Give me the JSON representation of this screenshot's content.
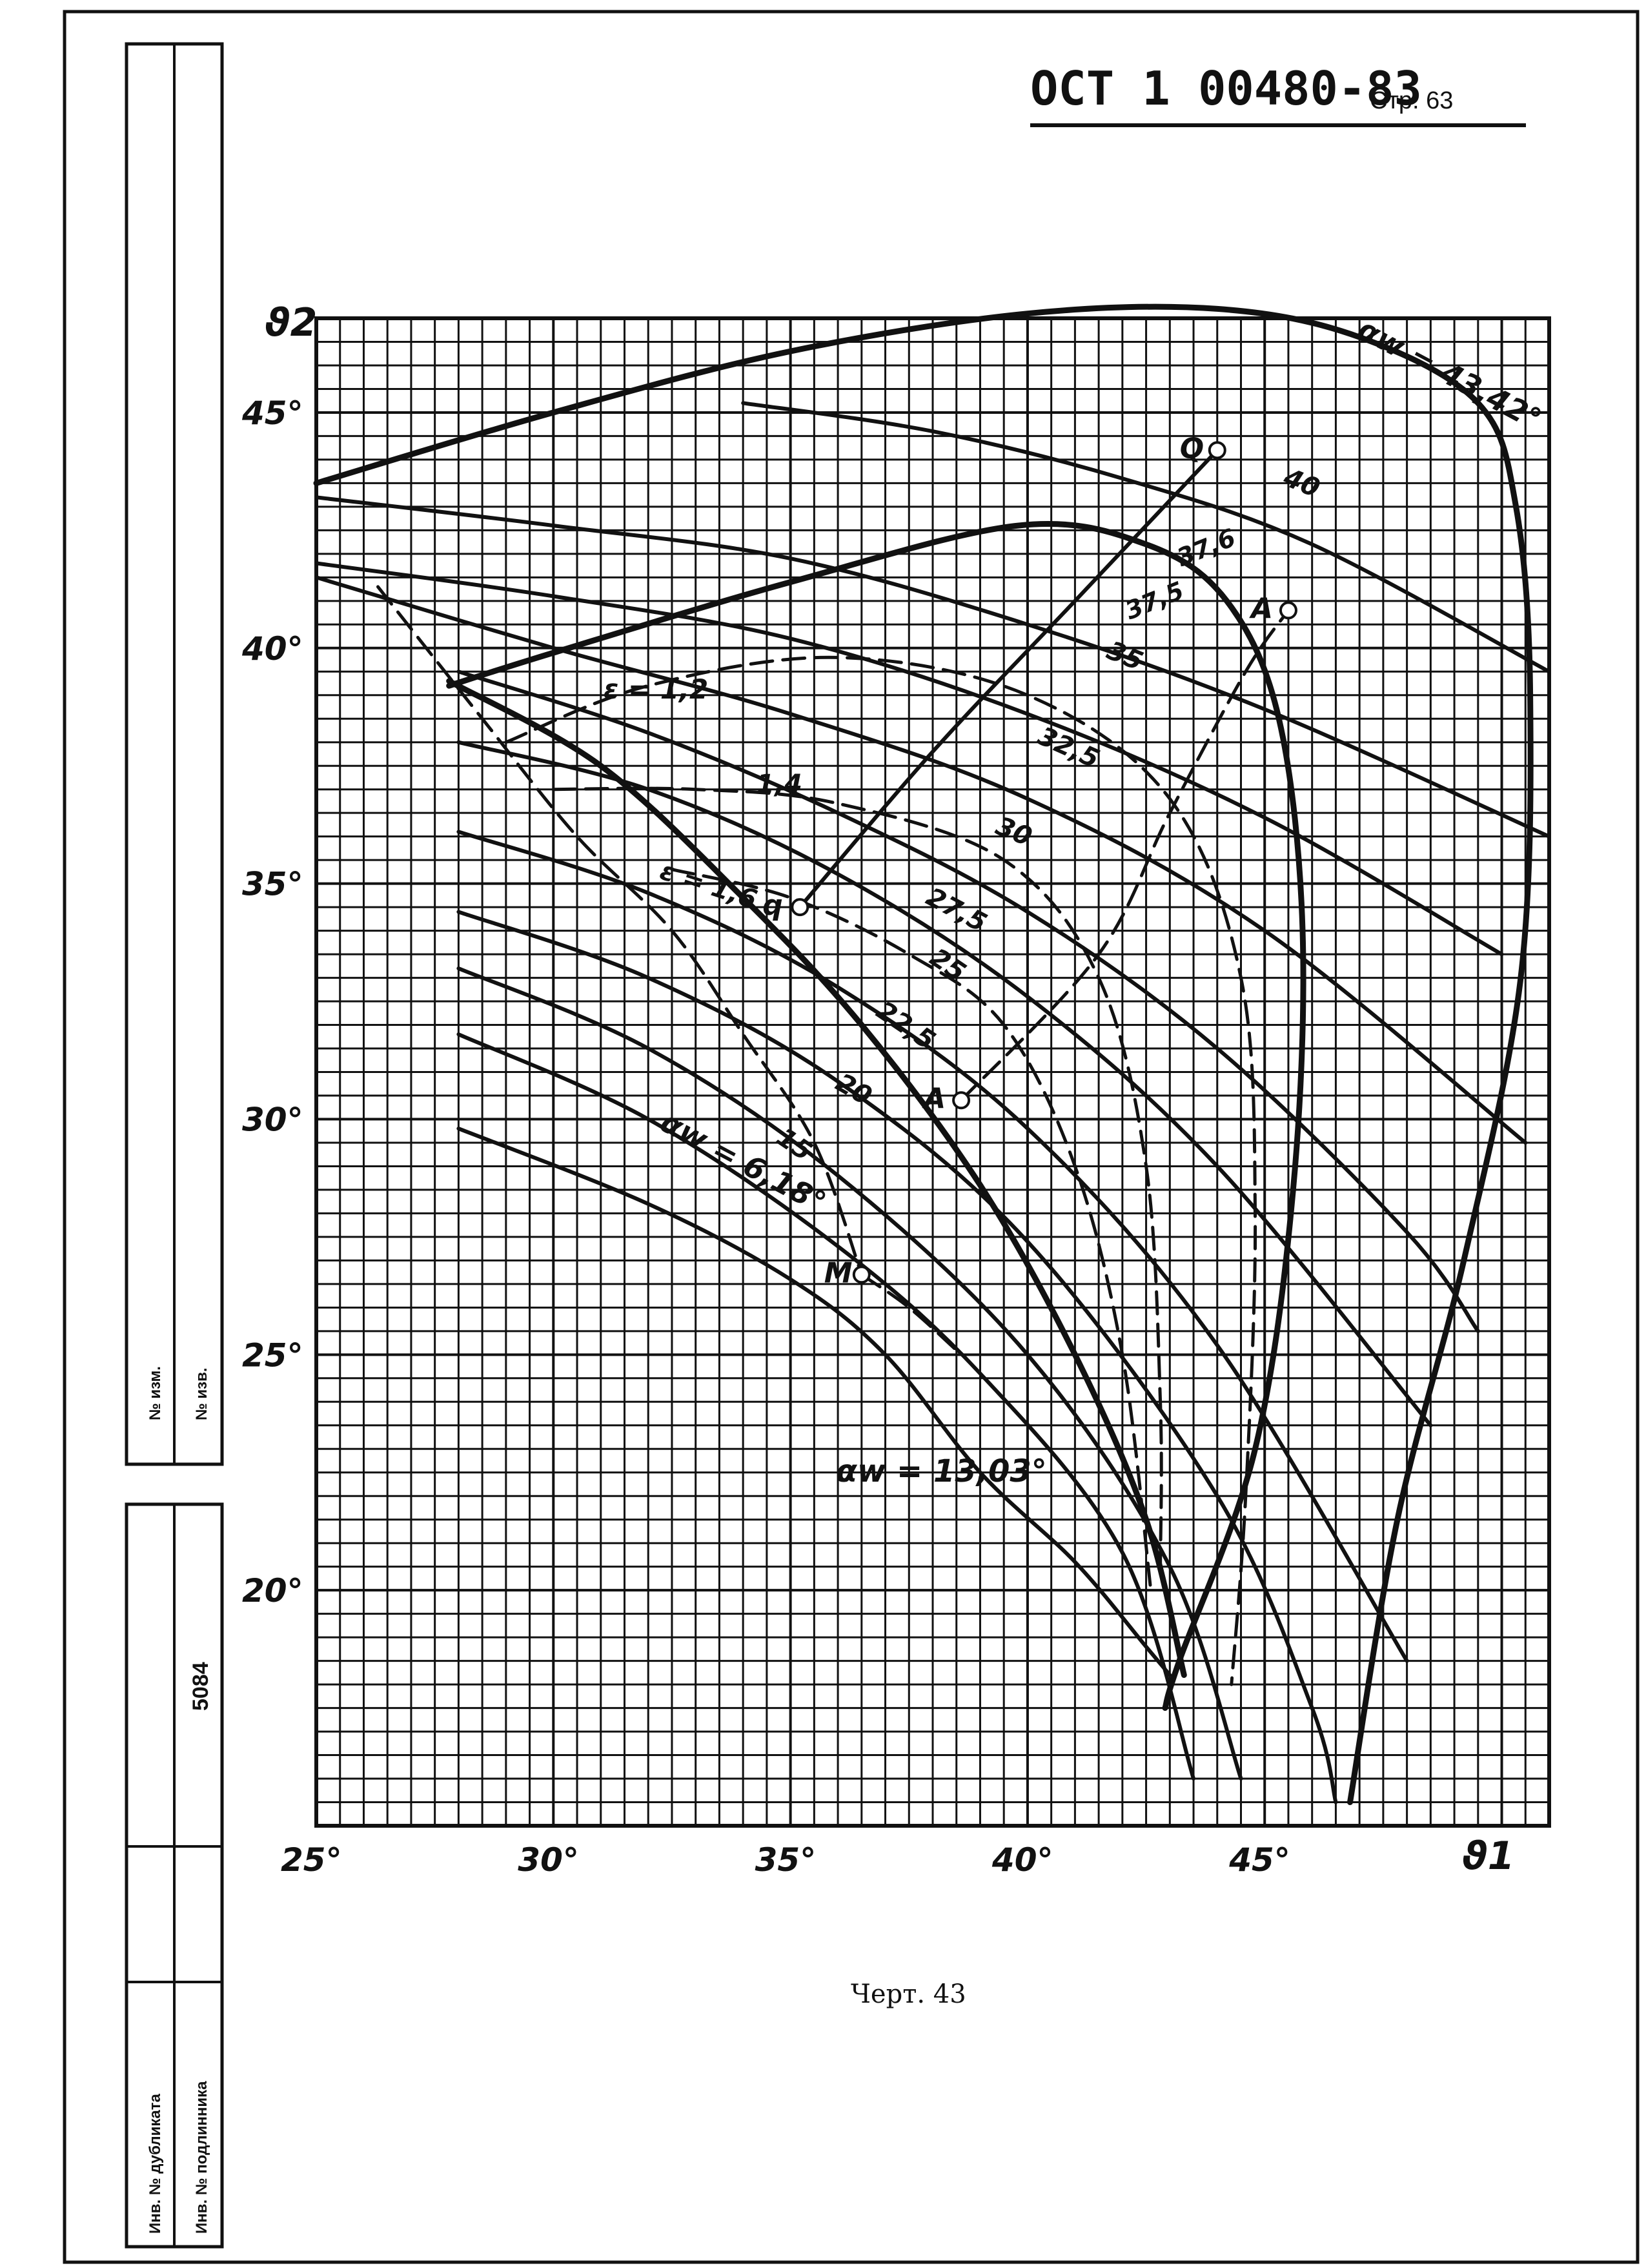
{
  "header": {
    "doc_code": "ОСТ 1 00480-83",
    "page_label": "Стр. 63"
  },
  "caption": "Черт. 43",
  "stamp": {
    "change_no_1": "№ изм.",
    "change_no_2": "№ изв.",
    "dup_inv": "Инв. № дубликата",
    "orig_inv": "Инв. № подлинника",
    "inv_number": "5084"
  },
  "chart_data": {
    "type": "line",
    "xlabel": "ϑ1",
    "ylabel": "ϑ2",
    "xlim": [
      25,
      51
    ],
    "ylim": [
      15,
      47
    ],
    "grid": true,
    "x_ticks": [
      "25°",
      "30°",
      "35°",
      "40°",
      "45°"
    ],
    "x_tick_values": [
      25,
      30,
      35,
      40,
      45
    ],
    "y_ticks": [
      "20°",
      "25°",
      "30°",
      "35°",
      "40°",
      "45°"
    ],
    "y_tick_values": [
      20,
      25,
      30,
      35,
      40,
      45
    ],
    "series": [
      {
        "name": "40",
        "points": [
          [
            34,
            45.2
          ],
          [
            38,
            44.6
          ],
          [
            42,
            43.6
          ],
          [
            46,
            42.2
          ],
          [
            51,
            39.5
          ]
        ]
      },
      {
        "name": "37,6",
        "points": [
          [
            25,
            43.2
          ],
          [
            30,
            42.6
          ],
          [
            35,
            41.9
          ],
          [
            40,
            40.5
          ],
          [
            45,
            38.7
          ],
          [
            51,
            36.0
          ]
        ]
      },
      {
        "name": "37,5",
        "points": [
          [
            25,
            41.8
          ],
          [
            30,
            41.1
          ],
          [
            35,
            40.2
          ],
          [
            40,
            38.6
          ],
          [
            45,
            36.4
          ],
          [
            50,
            33.5
          ]
        ]
      },
      {
        "name": "35",
        "points": [
          [
            25,
            41.5
          ],
          [
            30,
            40.0
          ],
          [
            35,
            38.6
          ],
          [
            40,
            36.8
          ],
          [
            45,
            34.0
          ],
          [
            50.5,
            29.5
          ]
        ]
      },
      {
        "name": "32,5",
        "points": [
          [
            28,
            39.5
          ],
          [
            32,
            38.2
          ],
          [
            36,
            36.5
          ],
          [
            40,
            34.4
          ],
          [
            44,
            31.5
          ],
          [
            48,
            27.6
          ],
          [
            49.5,
            25.5
          ]
        ]
      },
      {
        "name": "30",
        "points": [
          [
            28,
            38.0
          ],
          [
            32,
            37.0
          ],
          [
            36,
            35.2
          ],
          [
            40,
            32.6
          ],
          [
            44,
            29.0
          ],
          [
            48.5,
            23.5
          ]
        ]
      },
      {
        "name": "27,5",
        "points": [
          [
            28,
            36.1
          ],
          [
            32,
            34.8
          ],
          [
            36,
            32.8
          ],
          [
            40,
            29.8
          ],
          [
            44,
            25.2
          ],
          [
            48,
            18.5
          ]
        ]
      },
      {
        "name": "25",
        "points": [
          [
            28,
            34.4
          ],
          [
            32,
            33.0
          ],
          [
            36,
            30.8
          ],
          [
            40,
            27.4
          ],
          [
            44,
            22.0
          ],
          [
            46,
            17.5
          ],
          [
            46.5,
            15.5
          ]
        ]
      },
      {
        "name": "22,5",
        "points": [
          [
            28,
            33.2
          ],
          [
            32,
            31.5
          ],
          [
            36,
            28.8
          ],
          [
            40,
            25.0
          ],
          [
            43,
            20.5
          ],
          [
            44.5,
            16.0
          ]
        ]
      },
      {
        "name": "20",
        "points": [
          [
            28,
            31.8
          ],
          [
            32,
            30.0
          ],
          [
            36,
            27.3
          ],
          [
            39,
            24.6
          ],
          [
            42,
            20.8
          ],
          [
            43.5,
            16.0
          ]
        ]
      },
      {
        "name": "15",
        "points": [
          [
            28,
            29.8
          ],
          [
            32,
            28.2
          ],
          [
            35,
            26.6
          ],
          [
            37,
            25.0
          ],
          [
            39,
            22.5
          ],
          [
            41,
            20.6
          ],
          [
            42.5,
            18.8
          ],
          [
            43,
            18.2
          ]
        ]
      },
      {
        "name": "αw = 43,42°",
        "points": [
          [
            25,
            43.5
          ],
          [
            30,
            45.0
          ],
          [
            35,
            46.3
          ],
          [
            40,
            47.1
          ],
          [
            44,
            47.2
          ],
          [
            47,
            46.6
          ],
          [
            49.5,
            45.2
          ],
          [
            50.3,
            43.0
          ],
          [
            50.6,
            39.0
          ],
          [
            50.4,
            33.0
          ],
          [
            49.2,
            27.0
          ],
          [
            47.8,
            21.5
          ],
          [
            46.8,
            15.5
          ]
        ]
      },
      {
        "name": "αw = 13,03°",
        "points": [
          [
            27.8,
            39.2
          ],
          [
            30,
            39.9
          ],
          [
            35,
            41.4
          ],
          [
            39.8,
            42.6
          ],
          [
            42.5,
            42.2
          ],
          [
            44.2,
            41.0
          ],
          [
            45.3,
            38.5
          ],
          [
            45.8,
            34.0
          ],
          [
            45.6,
            28.5
          ],
          [
            44.8,
            23.0
          ],
          [
            43.2,
            18.5
          ],
          [
            42.9,
            17.5
          ]
        ]
      },
      {
        "name": "αw = 6,18°",
        "points": [
          [
            27.8,
            39.3
          ],
          [
            31,
            37.5
          ],
          [
            34,
            34.7
          ],
          [
            36.5,
            32.0
          ],
          [
            39,
            28.6
          ],
          [
            41,
            25.0
          ],
          [
            42.5,
            21.5
          ],
          [
            43.3,
            18.2
          ]
        ]
      },
      {
        "name": "ε = 1,2",
        "dashed": true,
        "points": [
          [
            29,
            38.0
          ],
          [
            32,
            39.2
          ],
          [
            36,
            39.8
          ],
          [
            40,
            39.0
          ],
          [
            43,
            36.8
          ],
          [
            44.5,
            33.0
          ],
          [
            44.8,
            28.0
          ],
          [
            44.6,
            22.0
          ],
          [
            44.3,
            18.0
          ]
        ]
      },
      {
        "name": "1,4",
        "dashed": true,
        "points": [
          [
            30,
            37.0
          ],
          [
            33,
            37.0
          ],
          [
            36,
            36.7
          ],
          [
            39.5,
            35.5
          ],
          [
            41.5,
            33.0
          ],
          [
            42.5,
            29.0
          ],
          [
            42.8,
            24.0
          ],
          [
            42.8,
            20.5
          ]
        ]
      },
      {
        "name": "ε = 1,6",
        "dashed": true,
        "points": [
          [
            32.5,
            35.3
          ],
          [
            35,
            34.7
          ],
          [
            37.5,
            33.5
          ],
          [
            39.5,
            32.0
          ],
          [
            41,
            29.0
          ],
          [
            42,
            25.0
          ],
          [
            42.6,
            20.0
          ]
        ]
      },
      {
        "name": "",
        "dashed": true,
        "points": [
          [
            26.3,
            41.3
          ],
          [
            28.5,
            38.5
          ],
          [
            30.5,
            36.0
          ],
          [
            32.5,
            34.0
          ],
          [
            34,
            31.8
          ],
          [
            35.5,
            29.5
          ],
          [
            36.5,
            26.7
          ]
        ]
      },
      {
        "name": "",
        "dashed": true,
        "points": [
          [
            36.5,
            26.7
          ],
          [
            37.5,
            26.0
          ],
          [
            38.6,
            25.0
          ]
        ]
      },
      {
        "name": "",
        "dashed": true,
        "points": [
          [
            38.6,
            30.4
          ],
          [
            41.5,
            33.5
          ],
          [
            43,
            36.5
          ],
          [
            44.6,
            39.5
          ],
          [
            45.5,
            40.8
          ]
        ]
      },
      {
        "name": "",
        "points": [
          [
            35.2,
            34.5
          ],
          [
            38,
            37.8
          ],
          [
            41,
            41.0
          ],
          [
            44,
            44.2
          ]
        ]
      }
    ],
    "points": [
      {
        "label": "M",
        "x": 36.5,
        "y": 26.7
      },
      {
        "label": "A",
        "x": 38.6,
        "y": 30.4
      },
      {
        "label": "A",
        "x": 45.5,
        "y": 40.8
      },
      {
        "label": "Q",
        "x": 44.0,
        "y": 44.2
      },
      {
        "label": "q",
        "x": 35.2,
        "y": 34.5
      }
    ],
    "annotations": [
      "αw = 43,42°",
      "αw = 13,03°",
      "αw = 6,18°",
      "ε = 1,2",
      "1,4",
      "ε = 1,6",
      "40",
      "37,6",
      "37,5",
      "35",
      "32,5",
      "30",
      "27,5",
      "25",
      "22,5",
      "20",
      "15"
    ]
  }
}
